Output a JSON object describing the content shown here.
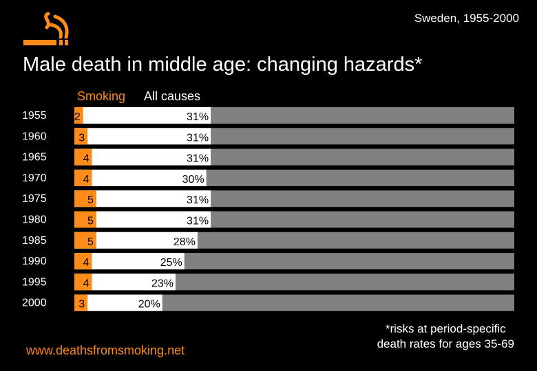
{
  "header": {
    "subtitle": "Sweden, 1955-2000",
    "title": "Male death in middle age: changing hazards*",
    "logo_icon": "smoking-cigarette-icon"
  },
  "colors": {
    "background": "#000000",
    "smoking": "#ff8c1a",
    "all_causes": "#ffffff",
    "remainder": "#808080"
  },
  "chart_data": {
    "type": "bar",
    "orientation": "horizontal",
    "stacked": true,
    "categories": [
      "1955",
      "1960",
      "1965",
      "1970",
      "1975",
      "1980",
      "1985",
      "1990",
      "1995",
      "2000"
    ],
    "series": [
      {
        "name": "Smoking",
        "values": [
          2,
          3,
          4,
          4,
          5,
          5,
          5,
          4,
          4,
          3
        ],
        "labels": [
          "2",
          "3",
          "4",
          "4",
          "5",
          "5",
          "5",
          "4",
          "4",
          "3"
        ]
      },
      {
        "name": "All causes",
        "values": [
          31,
          31,
          31,
          30,
          31,
          31,
          28,
          25,
          23,
          20
        ],
        "labels": [
          "31%",
          "31%",
          "31%",
          "30%",
          "31%",
          "31%",
          "28%",
          "25%",
          "23%",
          "20%"
        ]
      }
    ],
    "xlim": [
      0,
      100
    ],
    "legend": [
      "Smoking",
      "All causes"
    ],
    "legend_position": "top"
  },
  "footer": {
    "source": "www.deathsfromsmoking.net",
    "footnote_line1": "*risks at period-specific",
    "footnote_line2": "death rates for ages 35-69"
  }
}
